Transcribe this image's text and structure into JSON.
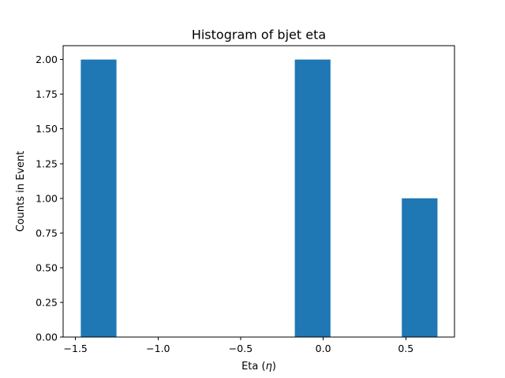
{
  "chart_data": {
    "type": "bar",
    "title": "Histogram of bjet eta",
    "xlabel": "Eta (",
    "xlabel_symbol": "η",
    "xlabel_close": ")",
    "ylabel": "Counts in Event",
    "xlim": [
      -1.575,
      0.795
    ],
    "ylim": [
      0,
      2.1
    ],
    "bars": [
      {
        "x_start": -1.468,
        "x_end": -1.252,
        "count": 2
      },
      {
        "x_start": -1.252,
        "x_end": -1.036,
        "count": 0
      },
      {
        "x_start": -1.036,
        "x_end": -0.82,
        "count": 0
      },
      {
        "x_start": -0.82,
        "x_end": -0.604,
        "count": 0
      },
      {
        "x_start": -0.604,
        "x_end": -0.388,
        "count": 0
      },
      {
        "x_start": -0.388,
        "x_end": -0.172,
        "count": 0
      },
      {
        "x_start": -0.172,
        "x_end": 0.044,
        "count": 2
      },
      {
        "x_start": 0.044,
        "x_end": 0.26,
        "count": 0
      },
      {
        "x_start": 0.26,
        "x_end": 0.476,
        "count": 0
      },
      {
        "x_start": 0.476,
        "x_end": 0.692,
        "count": 1
      }
    ],
    "x_ticks": [
      {
        "value": -1.5,
        "label": "−1.5"
      },
      {
        "value": -1.0,
        "label": "−1.0"
      },
      {
        "value": -0.5,
        "label": "−0.5"
      },
      {
        "value": 0.0,
        "label": "0.0"
      },
      {
        "value": 0.5,
        "label": "0.5"
      }
    ],
    "y_ticks": [
      {
        "value": 0.0,
        "label": "0.00"
      },
      {
        "value": 0.25,
        "label": "0.25"
      },
      {
        "value": 0.5,
        "label": "0.50"
      },
      {
        "value": 0.75,
        "label": "0.75"
      },
      {
        "value": 1.0,
        "label": "1.00"
      },
      {
        "value": 1.25,
        "label": "1.25"
      },
      {
        "value": 1.5,
        "label": "1.50"
      },
      {
        "value": 1.75,
        "label": "1.75"
      },
      {
        "value": 2.0,
        "label": "2.00"
      }
    ],
    "bar_color": "#1f77b4",
    "grid": false,
    "legend": "none"
  }
}
